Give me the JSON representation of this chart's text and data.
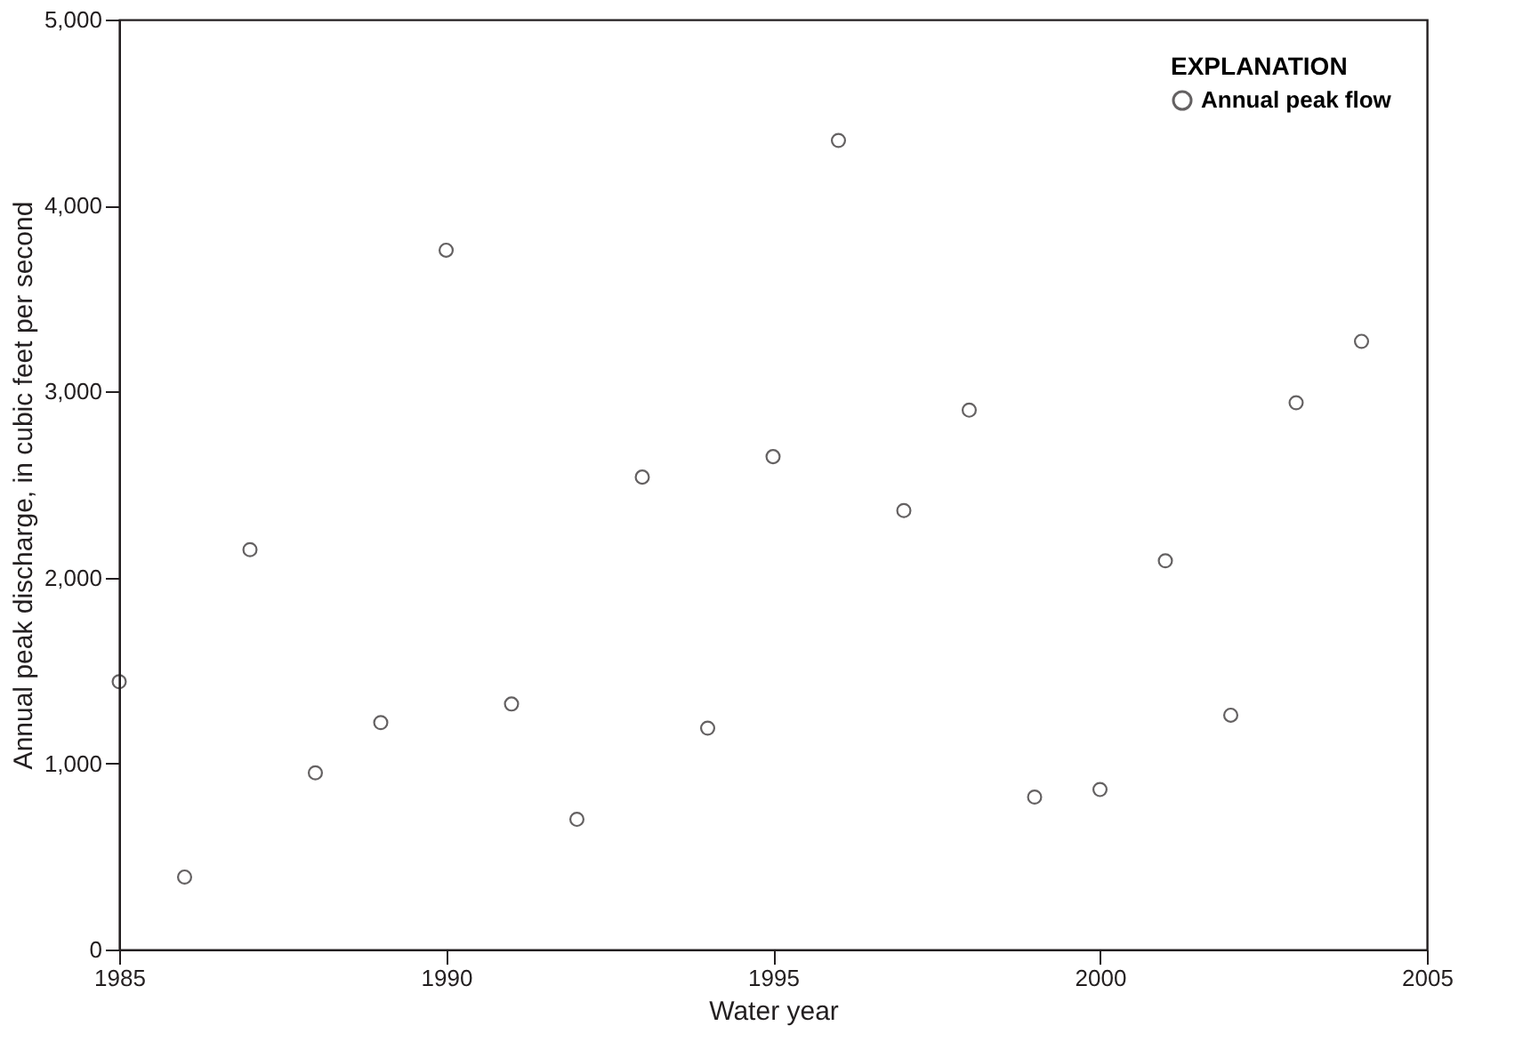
{
  "chart_data": {
    "type": "scatter",
    "xlabel": "Water year",
    "ylabel": "Annual peak discharge, in cubic feet per second",
    "legend_title": "EXPLANATION",
    "legend": "top right",
    "marker": "circle",
    "grid": false,
    "x": [
      1985,
      1986,
      1987,
      1988,
      1989,
      1990,
      1991,
      1992,
      1993,
      1994,
      1995,
      1996,
      1997,
      1998,
      1999,
      2000,
      2001,
      2002,
      2003,
      2004
    ],
    "series": [
      {
        "name": "Annual peak flow",
        "color": "#231f20",
        "values": [
          1440,
          390,
          2150,
          950,
          1220,
          3760,
          1320,
          700,
          2540,
          1190,
          2650,
          4350,
          2360,
          2900,
          820,
          860,
          2090,
          1260,
          2940,
          3270
        ]
      }
    ],
    "xlim": [
      1985,
      2005
    ],
    "xticks": [
      1985,
      1990,
      1995,
      2000,
      2005
    ],
    "ylim": [
      0,
      5000
    ],
    "yticks": [
      0,
      {
        "value": 1000,
        "label": "1,000"
      },
      {
        "value": 2000,
        "label": "2,000"
      },
      {
        "value": 3000,
        "label": "3,000"
      },
      {
        "value": 4000,
        "label": "4,000"
      },
      {
        "value": 5000,
        "label": "5,000"
      }
    ]
  }
}
